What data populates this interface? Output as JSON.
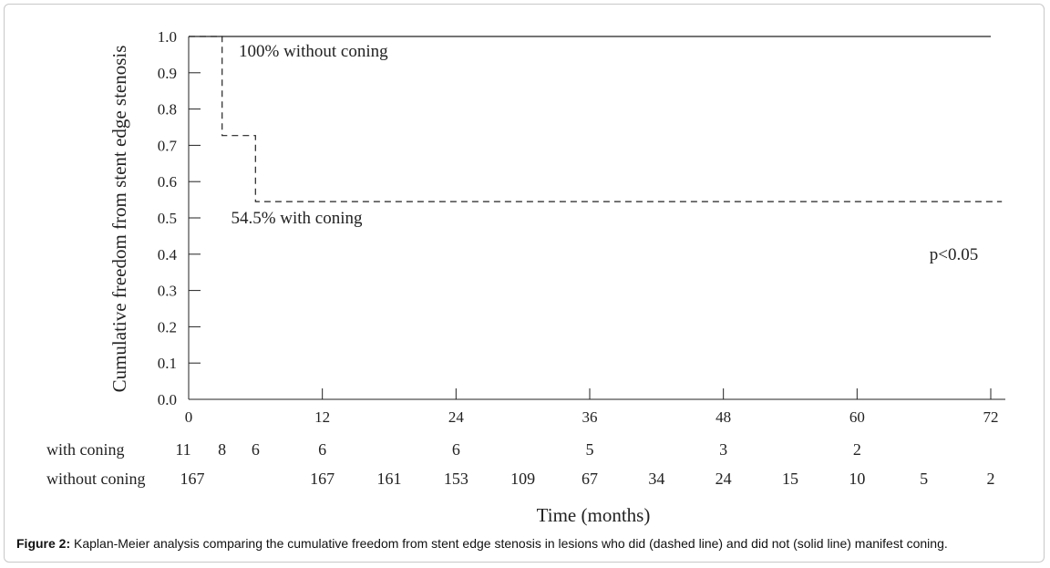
{
  "chart_data": {
    "type": "line",
    "ylabel": "Cumulative freedom from stent edge stenosis",
    "xlabel": "Time (months)",
    "xlim": [
      0,
      72
    ],
    "ylim": [
      0,
      1.0
    ],
    "x_ticks": [
      "0",
      "12",
      "24",
      "36",
      "48",
      "60",
      "72"
    ],
    "y_ticks": [
      "0.0",
      "0.1",
      "0.2",
      "0.3",
      "0.4",
      "0.5",
      "0.6",
      "0.7",
      "0.8",
      "0.9",
      "1.0"
    ],
    "series": [
      {
        "style": "dashed",
        "steps": [
          [
            0,
            1.0
          ],
          [
            3,
            1.0
          ],
          [
            3,
            0.727
          ],
          [
            6,
            0.727
          ],
          [
            6,
            0.545
          ],
          [
            73,
            0.545
          ]
        ]
      },
      {
        "style": "solid",
        "steps": [
          [
            0,
            1.0
          ],
          [
            72,
            1.0
          ]
        ]
      }
    ],
    "annotations": [
      {
        "text": "100% without coning",
        "x": 4.5,
        "y": 0.96
      },
      {
        "text": "54.5% with coning",
        "x": 3.8,
        "y": 0.5
      },
      {
        "text": "p<0.05",
        "x": 66.5,
        "y": 0.4
      }
    ],
    "risk_table": [
      {
        "label": "with coning",
        "entries": [
          {
            "x": 0,
            "n": "11"
          },
          {
            "x": 3,
            "n": "8"
          },
          {
            "x": 6,
            "n": "6"
          },
          {
            "x": 12,
            "n": "6"
          },
          {
            "x": 24,
            "n": "6"
          },
          {
            "x": 36,
            "n": "5"
          },
          {
            "x": 48,
            "n": "3"
          },
          {
            "x": 60,
            "n": "2"
          }
        ]
      },
      {
        "label": "without coning",
        "entries": [
          {
            "x": 0,
            "n": "167"
          },
          {
            "x": 12,
            "n": "167"
          },
          {
            "x": 18,
            "n": "161"
          },
          {
            "x": 24,
            "n": "153"
          },
          {
            "x": 30,
            "n": "109"
          },
          {
            "x": 36,
            "n": "67"
          },
          {
            "x": 42,
            "n": "34"
          },
          {
            "x": 48,
            "n": "24"
          },
          {
            "x": 54,
            "n": "15"
          },
          {
            "x": 60,
            "n": "10"
          },
          {
            "x": 66,
            "n": "5"
          },
          {
            "x": 72,
            "n": "2"
          }
        ]
      }
    ]
  },
  "caption": {
    "label": "Figure 2:",
    "text": "Kaplan-Meier analysis comparing the cumulative freedom from stent edge stenosis in lesions who did (dashed line) and did not (solid line) manifest coning."
  }
}
